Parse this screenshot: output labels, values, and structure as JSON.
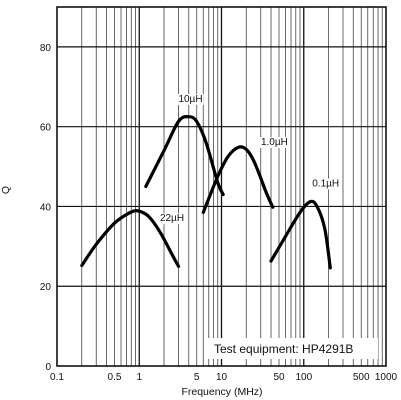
{
  "chart_data": {
    "type": "line",
    "xscale": "log",
    "xlim": [
      0.1,
      1000
    ],
    "ylim": [
      0,
      90
    ],
    "xlabel": "Frequency (MHz)",
    "ylabel": "Q",
    "grid": true,
    "x_tick_labels": [
      {
        "value": 0.1,
        "label": "0.1"
      },
      {
        "value": 0.5,
        "label": "0.5"
      },
      {
        "value": 1,
        "label": "1"
      },
      {
        "value": 5,
        "label": "5"
      },
      {
        "value": 10,
        "label": "10"
      },
      {
        "value": 50,
        "label": "50"
      },
      {
        "value": 100,
        "label": "100"
      },
      {
        "value": 500,
        "label": "500"
      },
      {
        "value": 1000,
        "label": "1000"
      }
    ],
    "y_tick_labels": [
      {
        "value": 0,
        "label": "0"
      },
      {
        "value": 20,
        "label": "20"
      },
      {
        "value": 40,
        "label": "40"
      },
      {
        "value": 60,
        "label": "60"
      },
      {
        "value": 80,
        "label": "80"
      }
    ],
    "series": [
      {
        "name": "22µH",
        "points": [
          [
            0.2,
            25.2
          ],
          [
            0.3,
            30.5
          ],
          [
            0.5,
            35.8
          ],
          [
            0.8,
            38.6
          ],
          [
            1.0,
            38.8
          ],
          [
            1.3,
            37.5
          ],
          [
            1.8,
            33.5
          ],
          [
            2.5,
            28
          ],
          [
            3.0,
            25
          ]
        ]
      },
      {
        "name": "10µH",
        "points": [
          [
            1.2,
            45
          ],
          [
            2.0,
            54
          ],
          [
            3.0,
            61.3
          ],
          [
            4.0,
            62.5
          ],
          [
            5.0,
            61.3
          ],
          [
            6.5,
            56
          ],
          [
            9.0,
            46
          ],
          [
            10.5,
            43
          ]
        ]
      },
      {
        "name": "1.0µH",
        "points": [
          [
            6.0,
            38.5
          ],
          [
            9.0,
            47.5
          ],
          [
            12.0,
            52.5
          ],
          [
            16.0,
            54.8
          ],
          [
            20.0,
            54.3
          ],
          [
            25.0,
            51.2
          ],
          [
            35.0,
            43.5
          ],
          [
            42.0,
            39.8
          ]
        ]
      },
      {
        "name": "0.1µH",
        "points": [
          [
            40.0,
            26.3
          ],
          [
            60.0,
            32.5
          ],
          [
            90.0,
            38.5
          ],
          [
            120.0,
            41.2
          ],
          [
            145.0,
            40
          ],
          [
            180.0,
            34.5
          ],
          [
            210.0,
            24.6
          ]
        ]
      }
    ],
    "curve_labels": [
      {
        "series": "10µH",
        "x": 4.2,
        "y": 66.2
      },
      {
        "series": "1.0µH",
        "x": 44.0,
        "y": 55.4
      },
      {
        "series": "0.1µH",
        "x": 185.0,
        "y": 45.0
      },
      {
        "series": "22µH",
        "x": 2.5,
        "y": 36.3
      }
    ],
    "annotation": "Test equipment: HP4291B"
  }
}
